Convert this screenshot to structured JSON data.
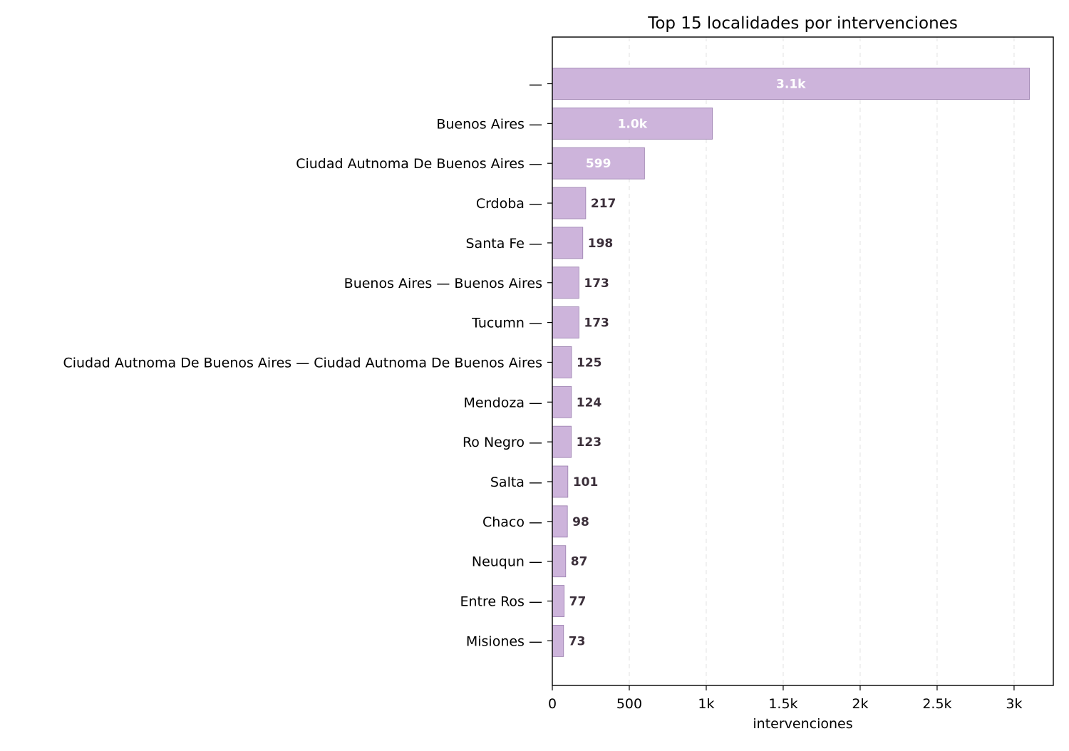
{
  "chart_data": {
    "type": "bar",
    "orientation": "horizontal",
    "title": "Top 15 localidades por intervenciones",
    "xlabel": "intervenciones",
    "ylabel": "",
    "categories": [
      "—",
      "Buenos Aires —",
      "Ciudad Autnoma De Buenos Aires —",
      "Crdoba —",
      "Santa Fe —",
      "Buenos Aires — Buenos Aires",
      "Tucumn —",
      "Ciudad Autnoma De Buenos Aires — Ciudad Autnoma De Buenos Aires",
      "Mendoza —",
      "Ro Negro —",
      "Salta —",
      "Chaco —",
      "Neuqun —",
      "Entre Ros —",
      "Misiones —"
    ],
    "values": [
      3100,
      1040,
      599,
      217,
      198,
      173,
      173,
      125,
      124,
      123,
      101,
      98,
      87,
      77,
      73
    ],
    "data_labels": [
      "3.1k",
      "1.0k",
      "599",
      "217",
      "198",
      "173",
      "173",
      "125",
      "124",
      "123",
      "101",
      "98",
      "87",
      "77",
      "73"
    ],
    "xlim": [
      0,
      3255
    ],
    "xticks": [
      0,
      500,
      1000,
      1500,
      2000,
      2500,
      3000
    ],
    "xtick_labels": [
      "0",
      "500",
      "1k",
      "1.5k",
      "2k",
      "2.5k",
      "3k"
    ],
    "grid": "x-dashed",
    "legend": "none",
    "bar_color": "#cdb4db",
    "bar_edge_color": "#9a7fae",
    "inside_label_color": "#ffffff",
    "outside_label_color": "#3b2f3a",
    "grid_color": "#e6e6e6"
  }
}
